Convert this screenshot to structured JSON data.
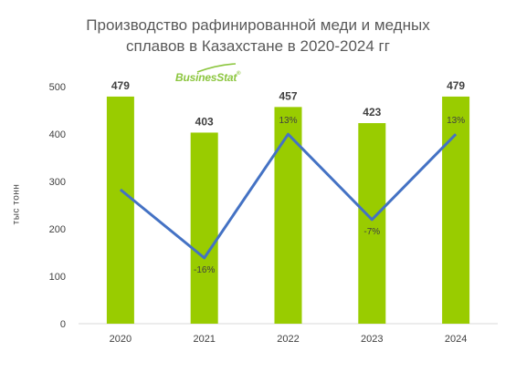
{
  "chart_data": {
    "type": "bar",
    "title_line1": "Производство рафинированной меди и медных",
    "title_line2": "сплавов в Казахстане в 2020-2024 гг",
    "ylabel": "тыс тонн",
    "ylim": [
      0,
      500
    ],
    "yticks": [
      "0",
      "100",
      "200",
      "300",
      "400",
      "500"
    ],
    "categories": [
      "2020",
      "2021",
      "2022",
      "2023",
      "2024"
    ],
    "values": [
      479,
      403,
      457,
      423,
      479
    ],
    "bar_color": "#99cc00",
    "line": {
      "color": "#4472c4",
      "values": [
        null,
        -16,
        13,
        -7,
        13
      ],
      "labels": [
        "",
        "-16%",
        "13%",
        "-7%",
        "13%"
      ]
    },
    "logo": "BusinesStat"
  }
}
